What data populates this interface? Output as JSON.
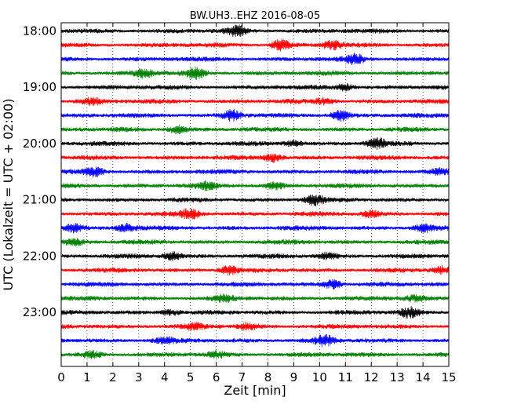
{
  "chart_data": {
    "type": "line",
    "title": "BW.UH3..EHZ 2016-08-05",
    "xlabel": "Zeit  [min]",
    "ylabel": "UTC (Lokalzeit = UTC + 02:00)",
    "xlim": [
      0,
      15
    ],
    "x_ticks": [
      0,
      1,
      2,
      3,
      4,
      5,
      6,
      7,
      8,
      9,
      10,
      11,
      12,
      13,
      14,
      15
    ],
    "x_tick_labels": [
      "0",
      "1",
      "2",
      "3",
      "4",
      "5",
      "6",
      "7",
      "8",
      "9",
      "10",
      "11",
      "12",
      "13",
      "14",
      "15"
    ],
    "grid": "vertical dotted",
    "trace_interval_minutes": 15,
    "y_tick_labels": [
      "18:00",
      "19:00",
      "20:00",
      "21:00",
      "22:00",
      "23:00"
    ],
    "trace_colors": [
      "#000000",
      "#ff0000",
      "#0000ff",
      "#008000"
    ],
    "traces": [
      {
        "start": "18:00",
        "color": "#000000",
        "bursts": [
          [
            6.8,
            0.9
          ]
        ]
      },
      {
        "start": "18:15",
        "color": "#ff0000",
        "bursts": [
          [
            8.5,
            1.0
          ],
          [
            10.5,
            0.8
          ]
        ]
      },
      {
        "start": "18:30",
        "color": "#0000ff",
        "bursts": [
          [
            11.4,
            1.0
          ]
        ]
      },
      {
        "start": "18:45",
        "color": "#008000",
        "bursts": [
          [
            3.2,
            0.8
          ],
          [
            5.2,
            1.0
          ]
        ]
      },
      {
        "start": "19:00",
        "color": "#000000",
        "bursts": [
          [
            11.0,
            0.6
          ]
        ]
      },
      {
        "start": "19:15",
        "color": "#ff0000",
        "bursts": [
          [
            1.2,
            0.6
          ],
          [
            10.2,
            0.6
          ]
        ]
      },
      {
        "start": "19:30",
        "color": "#0000ff",
        "bursts": [
          [
            6.6,
            1.0
          ],
          [
            10.8,
            1.0
          ]
        ]
      },
      {
        "start": "19:45",
        "color": "#008000",
        "bursts": [
          [
            4.5,
            0.8
          ]
        ]
      },
      {
        "start": "20:00",
        "color": "#000000",
        "bursts": [
          [
            9.0,
            0.6
          ],
          [
            12.2,
            1.0
          ]
        ]
      },
      {
        "start": "20:15",
        "color": "#ff0000",
        "bursts": [
          [
            8.2,
            0.8
          ]
        ]
      },
      {
        "start": "20:30",
        "color": "#0000ff",
        "bursts": [
          [
            1.3,
            0.8
          ],
          [
            14.7,
            0.7
          ]
        ]
      },
      {
        "start": "20:45",
        "color": "#008000",
        "bursts": [
          [
            5.6,
            0.6
          ],
          [
            8.3,
            0.6
          ]
        ]
      },
      {
        "start": "21:00",
        "color": "#000000",
        "bursts": [
          [
            9.8,
            1.0
          ]
        ]
      },
      {
        "start": "21:15",
        "color": "#ff0000",
        "bursts": [
          [
            5.0,
            0.9
          ],
          [
            12.0,
            0.6
          ]
        ]
      },
      {
        "start": "21:30",
        "color": "#0000ff",
        "bursts": [
          [
            0.5,
            0.8
          ],
          [
            2.5,
            0.8
          ],
          [
            14.0,
            0.7
          ]
        ]
      },
      {
        "start": "21:45",
        "color": "#008000",
        "bursts": [
          [
            0.5,
            0.6
          ]
        ]
      },
      {
        "start": "22:00",
        "color": "#000000",
        "bursts": [
          [
            4.3,
            0.7
          ],
          [
            10.3,
            0.6
          ]
        ]
      },
      {
        "start": "22:15",
        "color": "#ff0000",
        "bursts": [
          [
            6.5,
            0.8
          ],
          [
            14.8,
            0.7
          ]
        ]
      },
      {
        "start": "22:30",
        "color": "#0000ff",
        "bursts": [
          [
            10.5,
            0.9
          ]
        ]
      },
      {
        "start": "22:45",
        "color": "#008000",
        "bursts": [
          [
            6.3,
            0.6
          ],
          [
            13.7,
            0.5
          ]
        ]
      },
      {
        "start": "23:00",
        "color": "#000000",
        "bursts": [
          [
            4.2,
            0.6
          ],
          [
            13.5,
            1.0
          ]
        ]
      },
      {
        "start": "23:15",
        "color": "#ff0000",
        "bursts": [
          [
            5.1,
            0.6
          ],
          [
            7.2,
            0.6
          ]
        ]
      },
      {
        "start": "23:30",
        "color": "#0000ff",
        "bursts": [
          [
            10.2,
            1.0
          ],
          [
            4.0,
            0.6
          ]
        ]
      },
      {
        "start": "23:45",
        "color": "#008000",
        "bursts": [
          [
            1.2,
            0.6
          ],
          [
            6.0,
            0.5
          ]
        ]
      }
    ]
  }
}
